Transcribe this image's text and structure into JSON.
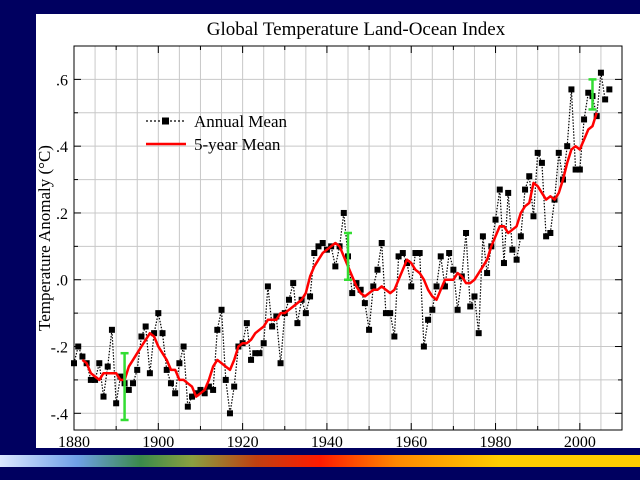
{
  "chart_data": {
    "type": "line",
    "title": "Global Temperature Land-Ocean Index",
    "xlabel": "",
    "ylabel": "Temperature Anomaly (°C)",
    "xlim": [
      1880,
      2010
    ],
    "ylim": [
      -0.45,
      0.7
    ],
    "x_ticks": [
      1880,
      1900,
      1920,
      1940,
      1960,
      1980,
      2000
    ],
    "x_tick_labels": [
      "1880",
      "1900",
      "1920",
      "1940",
      "1960",
      "1980",
      "2000"
    ],
    "y_ticks": [
      -0.4,
      -0.2,
      0.0,
      0.2,
      0.4,
      0.6
    ],
    "y_tick_labels": [
      "-.4",
      "-.2",
      ".0",
      ".2",
      ".4",
      ".6"
    ],
    "grid": true,
    "legend": "top-left",
    "colors": {
      "annual": "#000000",
      "five_year": "#ff0000",
      "error_bar": "#33dd33"
    },
    "series": [
      {
        "name": "Annual Mean",
        "style": "dotted-with-square-markers",
        "x": [
          1880,
          1881,
          1882,
          1883,
          1884,
          1885,
          1886,
          1887,
          1888,
          1889,
          1890,
          1891,
          1892,
          1893,
          1894,
          1895,
          1896,
          1897,
          1898,
          1899,
          1900,
          1901,
          1902,
          1903,
          1904,
          1905,
          1906,
          1907,
          1908,
          1909,
          1910,
          1911,
          1912,
          1913,
          1914,
          1915,
          1916,
          1917,
          1918,
          1919,
          1920,
          1921,
          1922,
          1923,
          1924,
          1925,
          1926,
          1927,
          1928,
          1929,
          1930,
          1931,
          1932,
          1933,
          1934,
          1935,
          1936,
          1937,
          1938,
          1939,
          1940,
          1941,
          1942,
          1943,
          1944,
          1945,
          1946,
          1947,
          1948,
          1949,
          1950,
          1951,
          1952,
          1953,
          1954,
          1955,
          1956,
          1957,
          1958,
          1959,
          1960,
          1961,
          1962,
          1963,
          1964,
          1965,
          1966,
          1967,
          1968,
          1969,
          1970,
          1971,
          1972,
          1973,
          1974,
          1975,
          1976,
          1977,
          1978,
          1979,
          1980,
          1981,
          1982,
          1983,
          1984,
          1985,
          1986,
          1987,
          1988,
          1989,
          1990,
          1991,
          1992,
          1993,
          1994,
          1995,
          1996,
          1997,
          1998,
          1999,
          2000,
          2001,
          2002,
          2003,
          2004,
          2005,
          2006
        ],
        "y": [
          -0.25,
          -0.2,
          -0.23,
          -0.25,
          -0.3,
          -0.3,
          -0.25,
          -0.35,
          -0.26,
          -0.15,
          -0.37,
          -0.29,
          -0.31,
          -0.33,
          -0.31,
          -0.27,
          -0.17,
          -0.14,
          -0.28,
          -0.16,
          -0.1,
          -0.16,
          -0.27,
          -0.31,
          -0.34,
          -0.25,
          -0.2,
          -0.38,
          -0.35,
          -0.34,
          -0.33,
          -0.34,
          -0.32,
          -0.33,
          -0.15,
          -0.09,
          -0.3,
          -0.4,
          -0.32,
          -0.2,
          -0.19,
          -0.13,
          -0.24,
          -0.22,
          -0.22,
          -0.19,
          -0.02,
          -0.14,
          -0.11,
          -0.25,
          -0.1,
          -0.06,
          -0.01,
          -0.13,
          -0.06,
          -0.1,
          -0.05,
          0.08,
          0.1,
          0.11,
          0.09,
          0.1,
          0.04,
          0.1,
          0.2,
          0.07,
          -0.04,
          -0.01,
          -0.03,
          -0.07,
          -0.15,
          -0.02,
          0.03,
          0.11,
          -0.1,
          -0.1,
          -0.17,
          0.07,
          0.08,
          0.05,
          -0.02,
          0.08,
          0.08,
          -0.2,
          -0.12,
          -0.09,
          -0.02,
          0.07,
          -0.02,
          0.08,
          0.03,
          -0.09,
          0.01,
          0.14,
          -0.08,
          -0.05,
          -0.16,
          0.13,
          0.02,
          0.1,
          0.18,
          0.27,
          0.05,
          0.26,
          0.09,
          0.06,
          0.13,
          0.27,
          0.31,
          0.19,
          0.38,
          0.35,
          0.13,
          0.14,
          0.24,
          0.38,
          0.3,
          0.4,
          0.57,
          0.33,
          0.33,
          0.48,
          0.56,
          0.55,
          0.49,
          0.62,
          0.54
        ],
        "extra_marker": {
          "x": 2007,
          "y": 0.57
        }
      },
      {
        "name": "5-year Mean",
        "style": "solid",
        "x": [
          1882,
          1883,
          1884,
          1885,
          1886,
          1887,
          1888,
          1889,
          1890,
          1891,
          1892,
          1893,
          1894,
          1895,
          1896,
          1897,
          1898,
          1899,
          1900,
          1901,
          1902,
          1903,
          1904,
          1905,
          1906,
          1907,
          1908,
          1909,
          1910,
          1911,
          1912,
          1913,
          1914,
          1915,
          1916,
          1917,
          1918,
          1919,
          1920,
          1921,
          1922,
          1923,
          1924,
          1925,
          1926,
          1927,
          1928,
          1929,
          1930,
          1931,
          1932,
          1933,
          1934,
          1935,
          1936,
          1937,
          1938,
          1939,
          1940,
          1941,
          1942,
          1943,
          1944,
          1945,
          1946,
          1947,
          1948,
          1949,
          1950,
          1951,
          1952,
          1953,
          1954,
          1955,
          1956,
          1957,
          1958,
          1959,
          1960,
          1961,
          1962,
          1963,
          1964,
          1965,
          1966,
          1967,
          1968,
          1969,
          1970,
          1971,
          1972,
          1973,
          1974,
          1975,
          1976,
          1977,
          1978,
          1979,
          1980,
          1981,
          1982,
          1983,
          1984,
          1985,
          1986,
          1987,
          1988,
          1989,
          1990,
          1991,
          1992,
          1993,
          1994,
          1995,
          1996,
          1997,
          1998,
          1999,
          2000,
          2001,
          2002,
          2003,
          2004
        ],
        "y": [
          -0.24,
          -0.25,
          -0.28,
          -0.29,
          -0.3,
          -0.28,
          -0.28,
          -0.28,
          -0.28,
          -0.3,
          -0.3,
          -0.26,
          -0.24,
          -0.22,
          -0.2,
          -0.18,
          -0.16,
          -0.17,
          -0.2,
          -0.22,
          -0.24,
          -0.27,
          -0.27,
          -0.3,
          -0.3,
          -0.31,
          -0.32,
          -0.35,
          -0.34,
          -0.33,
          -0.3,
          -0.26,
          -0.24,
          -0.25,
          -0.26,
          -0.27,
          -0.24,
          -0.2,
          -0.19,
          -0.19,
          -0.18,
          -0.16,
          -0.15,
          -0.14,
          -0.12,
          -0.12,
          -0.12,
          -0.1,
          -0.1,
          -0.09,
          -0.08,
          -0.07,
          -0.06,
          -0.04,
          0.01,
          0.04,
          0.06,
          0.08,
          0.09,
          0.1,
          0.11,
          0.1,
          0.07,
          0.04,
          0.01,
          -0.02,
          -0.04,
          -0.05,
          -0.04,
          -0.03,
          -0.03,
          -0.02,
          -0.03,
          -0.04,
          -0.03,
          0.0,
          0.03,
          0.06,
          0.05,
          0.03,
          0.02,
          0.0,
          -0.03,
          -0.05,
          -0.06,
          -0.03,
          0.0,
          0.0,
          0.0,
          0.02,
          0.01,
          -0.01,
          -0.01,
          0.0,
          0.02,
          0.04,
          0.06,
          0.1,
          0.13,
          0.16,
          0.16,
          0.14,
          0.15,
          0.16,
          0.2,
          0.22,
          0.23,
          0.29,
          0.28,
          0.26,
          0.24,
          0.25,
          0.24,
          0.26,
          0.3,
          0.35,
          0.39,
          0.4,
          0.39,
          0.42,
          0.45,
          0.46,
          0.5
        ]
      }
    ],
    "error_bars": [
      {
        "x": 1892,
        "center": -0.32,
        "low": -0.42,
        "high": -0.22
      },
      {
        "x": 1945,
        "center": 0.07,
        "low": 0.0,
        "high": 0.14
      },
      {
        "x": 2003,
        "center": 0.55,
        "low": 0.51,
        "high": 0.6
      }
    ]
  }
}
